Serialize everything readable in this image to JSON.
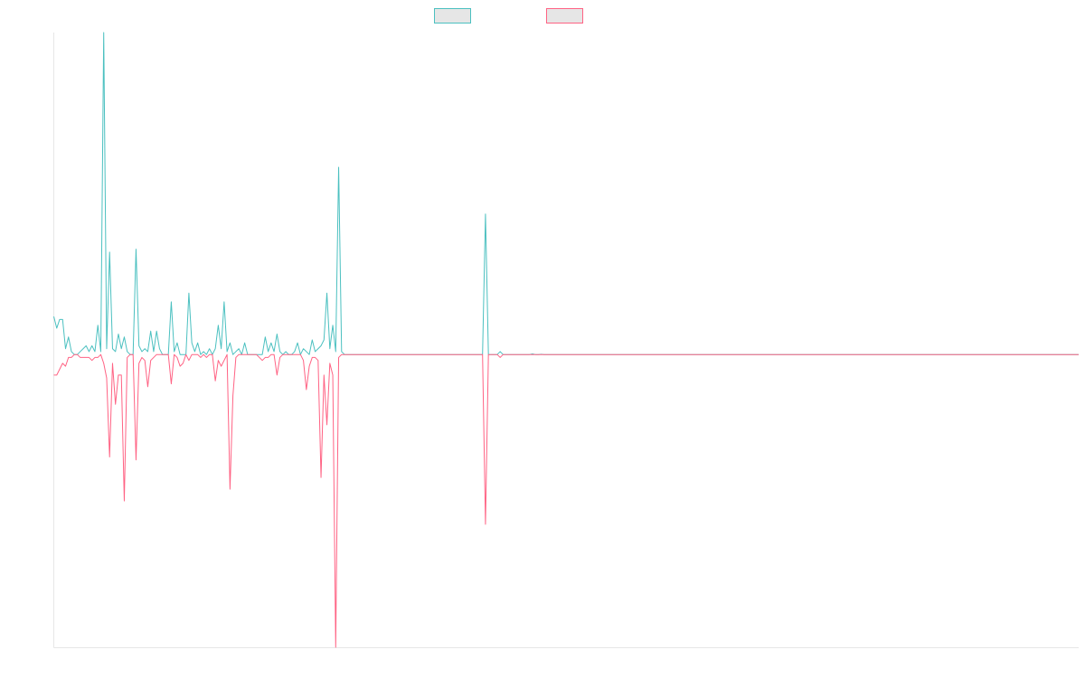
{
  "chart_data": {
    "type": "line",
    "title": "",
    "xlabel": "",
    "ylabel": "",
    "grid": false,
    "legend_position": "top-center",
    "x_count": 350,
    "ylim": [
      -1.0,
      1.1
    ],
    "baseline": 0,
    "series": [
      {
        "color": "#4bc0c0",
        "fill": "#e6e6e6",
        "spikes": [
          [
            0,
            0.13
          ],
          [
            1,
            0.09
          ],
          [
            2,
            0.12
          ],
          [
            3,
            0.12
          ],
          [
            4,
            0.02
          ],
          [
            5,
            0.06
          ],
          [
            6,
            0.01
          ],
          [
            9,
            0.01
          ],
          [
            10,
            0.02
          ],
          [
            11,
            0.03
          ],
          [
            12,
            0.01
          ],
          [
            13,
            0.03
          ],
          [
            14,
            0.01
          ],
          [
            15,
            0.1
          ],
          [
            16,
            0.01
          ],
          [
            17,
            1.1
          ],
          [
            18,
            0.02
          ],
          [
            19,
            0.35
          ],
          [
            20,
            0.02
          ],
          [
            21,
            0.01
          ],
          [
            22,
            0.07
          ],
          [
            23,
            0.02
          ],
          [
            24,
            0.06
          ],
          [
            25,
            0.01
          ],
          [
            28,
            0.36
          ],
          [
            29,
            0.03
          ],
          [
            30,
            0.01
          ],
          [
            31,
            0.02
          ],
          [
            32,
            0.01
          ],
          [
            33,
            0.08
          ],
          [
            34,
            0.01
          ],
          [
            35,
            0.08
          ],
          [
            36,
            0.02
          ],
          [
            40,
            0.18
          ],
          [
            41,
            0.01
          ],
          [
            42,
            0.04
          ],
          [
            46,
            0.21
          ],
          [
            47,
            0.04
          ],
          [
            48,
            0.01
          ],
          [
            49,
            0.04
          ],
          [
            51,
            0.01
          ],
          [
            53,
            0.02
          ],
          [
            55,
            0.02
          ],
          [
            56,
            0.1
          ],
          [
            57,
            0.02
          ],
          [
            58,
            0.18
          ],
          [
            59,
            0.01
          ],
          [
            60,
            0.04
          ],
          [
            62,
            0.01
          ],
          [
            63,
            0.02
          ],
          [
            65,
            0.04
          ],
          [
            72,
            0.06
          ],
          [
            73,
            0.01
          ],
          [
            74,
            0.04
          ],
          [
            75,
            0.01
          ],
          [
            76,
            0.07
          ],
          [
            77,
            0.01
          ],
          [
            79,
            0.01
          ],
          [
            82,
            0.01
          ],
          [
            83,
            0.04
          ],
          [
            85,
            0.02
          ],
          [
            86,
            0.01
          ],
          [
            88,
            0.05
          ],
          [
            89,
            0.01
          ],
          [
            90,
            0.02
          ],
          [
            91,
            0.03
          ],
          [
            92,
            0.05
          ],
          [
            93,
            0.21
          ],
          [
            94,
            0.02
          ],
          [
            95,
            0.1
          ],
          [
            96,
            0.01
          ],
          [
            97,
            0.64
          ],
          [
            98,
            0.01
          ],
          [
            147,
            0.48
          ],
          [
            152,
            0.01
          ],
          [
            163,
            0.002
          ],
          [
            166,
            0.001
          ]
        ]
      },
      {
        "color": "#ff6384",
        "fill": "#e6e6e6",
        "spikes": [
          [
            0,
            -0.07
          ],
          [
            1,
            -0.07
          ],
          [
            2,
            -0.05
          ],
          [
            3,
            -0.03
          ],
          [
            4,
            -0.04
          ],
          [
            5,
            -0.01
          ],
          [
            6,
            -0.01
          ],
          [
            9,
            -0.01
          ],
          [
            10,
            -0.01
          ],
          [
            11,
            -0.01
          ],
          [
            12,
            -0.01
          ],
          [
            13,
            -0.02
          ],
          [
            14,
            -0.01
          ],
          [
            15,
            -0.01
          ],
          [
            17,
            -0.03
          ],
          [
            18,
            -0.08
          ],
          [
            19,
            -0.35
          ],
          [
            20,
            -0.03
          ],
          [
            21,
            -0.17
          ],
          [
            22,
            -0.07
          ],
          [
            23,
            -0.07
          ],
          [
            24,
            -0.5
          ],
          [
            25,
            -0.01
          ],
          [
            28,
            -0.36
          ],
          [
            29,
            -0.03
          ],
          [
            30,
            -0.01
          ],
          [
            31,
            -0.02
          ],
          [
            32,
            -0.11
          ],
          [
            33,
            -0.02
          ],
          [
            34,
            -0.01
          ],
          [
            40,
            -0.1
          ],
          [
            42,
            -0.01
          ],
          [
            43,
            -0.04
          ],
          [
            44,
            -0.03
          ],
          [
            46,
            -0.02
          ],
          [
            50,
            -0.01
          ],
          [
            52,
            -0.01
          ],
          [
            55,
            -0.09
          ],
          [
            56,
            -0.02
          ],
          [
            57,
            -0.04
          ],
          [
            58,
            -0.02
          ],
          [
            60,
            -0.46
          ],
          [
            61,
            -0.14
          ],
          [
            62,
            -0.01
          ],
          [
            70,
            -0.01
          ],
          [
            71,
            -0.02
          ],
          [
            72,
            -0.01
          ],
          [
            73,
            -0.01
          ],
          [
            76,
            -0.07
          ],
          [
            77,
            -0.01
          ],
          [
            85,
            -0.02
          ],
          [
            86,
            -0.12
          ],
          [
            87,
            -0.04
          ],
          [
            88,
            -0.01
          ],
          [
            89,
            -0.01
          ],
          [
            90,
            -0.02
          ],
          [
            91,
            -0.42
          ],
          [
            92,
            -0.07
          ],
          [
            93,
            -0.24
          ],
          [
            94,
            -0.03
          ],
          [
            95,
            -0.07
          ],
          [
            96,
            -1.0
          ],
          [
            97,
            -0.01
          ],
          [
            147,
            -0.58
          ],
          [
            152,
            -0.01
          ]
        ]
      }
    ]
  }
}
